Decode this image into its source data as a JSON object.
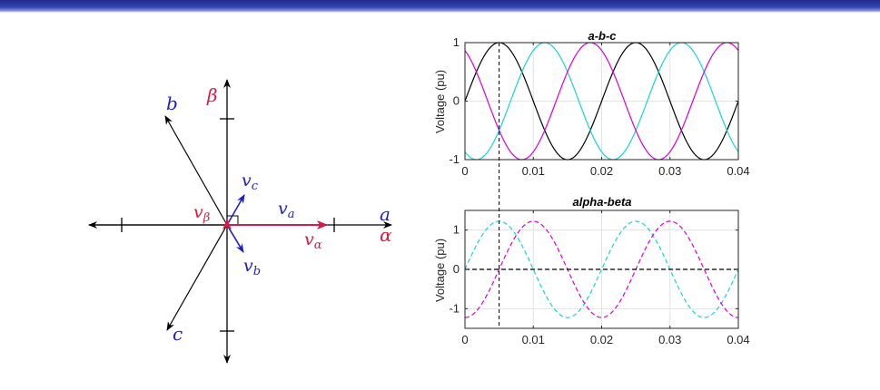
{
  "phasor": {
    "axis_labels": {
      "a": "a",
      "alpha": "α",
      "beta": "β",
      "b": "b",
      "c": "c"
    },
    "vector_labels": {
      "va_base": "v",
      "va_sub": "a",
      "vb_base": "v",
      "vb_sub": "b",
      "vc_base": "v",
      "vc_sub": "c",
      "valpha_base": "v",
      "valpha_sub": "α",
      "vbeta_base": "v",
      "vbeta_sub": "β"
    }
  },
  "colors": {
    "blue": "#1f1fbf",
    "red": "#d81b45",
    "magenta": "#d600d6",
    "cyan": "#19d3d3",
    "black": "#000000"
  },
  "chart_data": [
    {
      "type": "line",
      "title": "a-b-c",
      "ylabel": "Voltage (pu)",
      "xlim": [
        0,
        0.04
      ],
      "ylim": [
        -1,
        1
      ],
      "xticks": [
        0,
        0.01,
        0.02,
        0.03,
        0.04
      ],
      "xtick_labels": [
        "0",
        "0.01",
        "0.02",
        "0.03",
        "0.04"
      ],
      "yticks": [
        -1,
        0,
        1
      ],
      "ytick_labels": [
        "-1",
        "0",
        "1"
      ],
      "grid": true,
      "frequency_hz": 50,
      "marker_x": 0.005,
      "series": [
        {
          "color": "#000000",
          "style": "solid",
          "amplitude": 1,
          "phase_deg": 0
        },
        {
          "color": "#19d3d3",
          "style": "solid",
          "amplitude": 1,
          "phase_deg": -120
        },
        {
          "color": "#d600d6",
          "style": "solid",
          "amplitude": 1,
          "phase_deg": 120
        }
      ]
    },
    {
      "type": "line",
      "title": "alpha-beta",
      "ylabel": "Voltage (pu)",
      "xlim": [
        0,
        0.04
      ],
      "ylim": [
        -1.5,
        1.5
      ],
      "xticks": [
        0,
        0.01,
        0.02,
        0.03,
        0.04
      ],
      "xtick_labels": [
        "0",
        "0.01",
        "0.02",
        "0.03",
        "0.04"
      ],
      "yticks": [
        -1,
        0,
        1
      ],
      "ytick_labels": [
        "-1",
        "0",
        "1"
      ],
      "grid": true,
      "frequency_hz": 50,
      "marker_x": 0.005,
      "series": [
        {
          "color": "#19d3d3",
          "style": "dashed",
          "amplitude": 1.2247,
          "phase_deg": 0
        },
        {
          "color": "#d600d6",
          "style": "dashed",
          "amplitude": 1.2247,
          "phase_deg": -90
        },
        {
          "color": "#000000",
          "style": "dashed",
          "amplitude": 0,
          "phase_deg": 0
        }
      ]
    }
  ]
}
